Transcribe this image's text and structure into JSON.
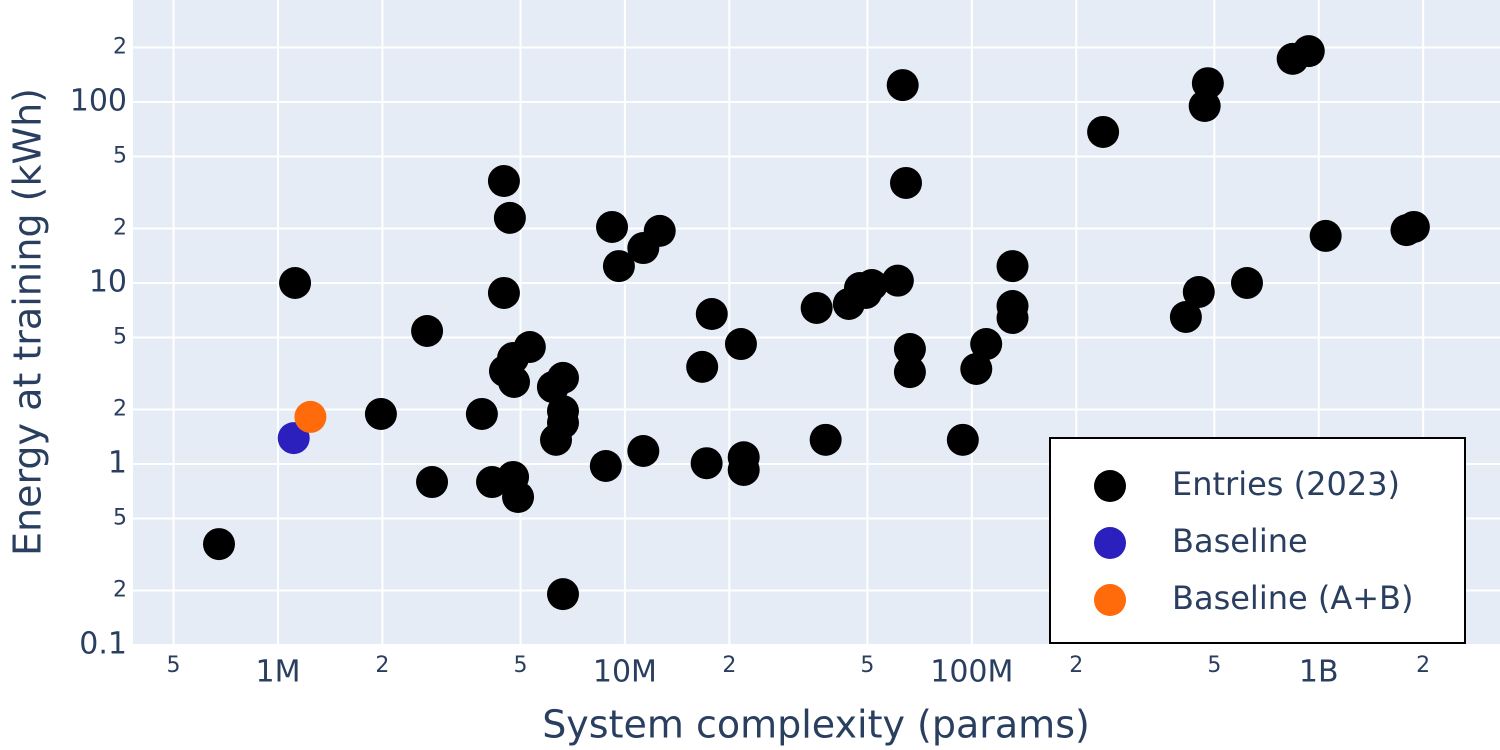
{
  "chart_data": {
    "type": "scatter",
    "x_label": "System complexity (params)",
    "y_label": "Energy at training (kWh)",
    "x_log": true,
    "y_log": true,
    "grid": true,
    "legend": "lower right",
    "xlim": [
      382000,
      3330000000
    ],
    "ylim": [
      0.1,
      366
    ],
    "xticks": [
      {
        "value": 500000,
        "label": "5"
      },
      {
        "value": 1000000,
        "label": "1M"
      },
      {
        "value": 2000000,
        "label": "2"
      },
      {
        "value": 5000000,
        "label": "5"
      },
      {
        "value": 10000000,
        "label": "10M"
      },
      {
        "value": 20000000,
        "label": "2"
      },
      {
        "value": 50000000,
        "label": "5"
      },
      {
        "value": 100000000,
        "label": "100M"
      },
      {
        "value": 200000000,
        "label": "2"
      },
      {
        "value": 500000000,
        "label": "5"
      },
      {
        "value": 1000000000,
        "label": "1B"
      },
      {
        "value": 2000000000,
        "label": "2"
      }
    ],
    "yticks": [
      0.1,
      {
        "value": 0.2,
        "label": "2"
      },
      {
        "value": 0.5,
        "label": "5"
      },
      1,
      {
        "value": 2,
        "label": "2"
      },
      {
        "value": 5,
        "label": "5"
      },
      10,
      {
        "value": 20,
        "label": "2"
      },
      {
        "value": 50,
        "label": "5"
      },
      100,
      {
        "value": 200,
        "label": "2"
      }
    ],
    "series": [
      {
        "name": "Entries (2023)",
        "color": "#000000",
        "x": [
          676000,
          1120000,
          2690000,
          1980000,
          2780000,
          3870000,
          4140000,
          4480000,
          4660000,
          4480000,
          4510000,
          4760000,
          4790000,
          4760000,
          4920000,
          5320000,
          6200000,
          6630000,
          6630000,
          6630000,
          6330000,
          6630000,
          8810000,
          9180000,
          9610000,
          11300000,
          11300000,
          12600000,
          16700000,
          17800000,
          17200000,
          21600000,
          22000000,
          22000000,
          35700000,
          37900000,
          44200000,
          47600000,
          49500000,
          51500000,
          61200000,
          63200000,
          64600000,
          66300000,
          66300000,
          94200000,
          103000000,
          110000000,
          131000000,
          131000000,
          131000000,
          239000000,
          414000000,
          451000000,
          469000000,
          479000000,
          621000000,
          841000000,
          936000000,
          1047000000,
          1790000000,
          1880000000
        ],
        "values": [
          0.361,
          10,
          5.43,
          1.89,
          0.795,
          1.89,
          0.795,
          36.6,
          22.9,
          8.81,
          3.26,
          3.85,
          2.84,
          0.848,
          0.657,
          4.43,
          2.66,
          2.99,
          1.96,
          1.69,
          1.36,
          0.191,
          0.975,
          20.4,
          12.4,
          1.18,
          15.6,
          19.4,
          3.44,
          6.74,
          1.01,
          4.6,
          1.09,
          0.927,
          7.28,
          1.36,
          7.66,
          9.38,
          8.81,
          9.75,
          10.3,
          124,
          35.7,
          4.32,
          3.22,
          1.36,
          3.35,
          4.6,
          12.4,
          7.46,
          6.41,
          68.3,
          6.49,
          8.92,
          95,
          127,
          10,
          173,
          191,
          18.2,
          19.6,
          20.4
        ]
      },
      {
        "name": "Baseline",
        "color": "#2b1fbd",
        "x": [
          1110000
        ],
        "values": [
          1.39
        ]
      },
      {
        "name": "Baseline (A+B)",
        "color": "#ff6a0a",
        "x": [
          1240000
        ],
        "values": [
          1.82
        ]
      }
    ]
  }
}
